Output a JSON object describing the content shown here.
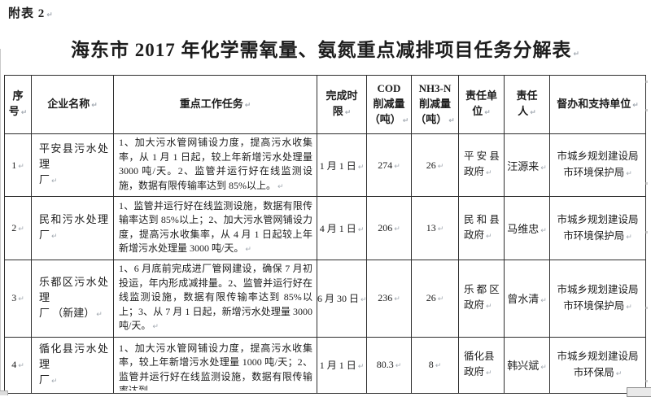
{
  "page": {
    "annex_label": "附表 2",
    "title": "海东市 2017 年化学需氧量、氨氮重点减排项目任务分解表"
  },
  "colors": {
    "background": "#ffffff",
    "text": "#1c1c1c",
    "table_border": "#2e2e2e",
    "formatting_mark": "#a3aab2"
  },
  "ui": {
    "formatting_mark": "↵"
  },
  "table": {
    "columns": [
      {
        "label": "序\n号"
      },
      {
        "label": "企业名称"
      },
      {
        "label": "重点工作任务"
      },
      {
        "label": "完成时\n限"
      },
      {
        "label": "COD\n削减量\n（吨）"
      },
      {
        "label": "NH3-N\n削减量\n（吨）"
      },
      {
        "label": "责任单\n位"
      },
      {
        "label": "责任\n人"
      },
      {
        "label": "督办和支持单位"
      }
    ],
    "rows": [
      {
        "no": "1",
        "enterprise": "平安县污水处理\n厂",
        "tasks": "1、加大污水管网铺设力度，提高污水收集率，从 1 月 1 日起，较上年新增污水处理量 3000 吨/天。2、监管并运行好在线监测设施，数据有限传输率达到 85%以上。",
        "deadline": "1 月 1 日",
        "cod_reduction": "274",
        "nh3n_reduction": "26",
        "responsible_unit": "平 安 县\n政府",
        "responsible_person": "汪源来",
        "supervising_units": "市城乡规划建设局\n市环境保护局"
      },
      {
        "no": "2",
        "enterprise": "民和污水处理厂",
        "tasks": "1、监管并运行好在线监测设施，数据有限传输率达到 85%以上；2、加大污水管网铺设力度，提高污水收集率，从 4 月 1 日起较上年新增污水处理量 3000 吨/天。",
        "deadline": "4 月 1 日",
        "cod_reduction": "206",
        "nh3n_reduction": "13",
        "responsible_unit": "民 和 县\n政府",
        "responsible_person": "马维忠",
        "supervising_units": "市城乡规划建设局\n市环境保护局"
      },
      {
        "no": "3",
        "enterprise": "乐都区污水处理\n厂 （新建）",
        "tasks": "1、6 月底前完成进厂管网建设，确保 7 月初投运，年内形成减排量。2、监管并运行好在线监测设施，数据有限传输率达到 85%以上；3、从 7 月 1 日起，新增污水处理量 3000 吨/天。",
        "deadline": "6 月 30 日",
        "cod_reduction": "236",
        "nh3n_reduction": "26",
        "responsible_unit": "乐 都 区\n政府",
        "responsible_person": "曾水清",
        "supervising_units": "市城乡规划建设局\n市环境保护局"
      },
      {
        "no": "4",
        "enterprise": "循化县污水处理\n厂",
        "tasks": "1、加大污水管网铺设力度，提高污水收集率，较上年新增污水处理量 1000 吨/天；2、监管并运行好在线监测设施，数据有限传输率达到",
        "deadline": "1 月 1 日",
        "cod_reduction": "80.3",
        "nh3n_reduction": "8",
        "responsible_unit": "循化县\n政府",
        "responsible_person": "韩兴斌",
        "supervising_units": "市城乡规划建设局\n市环保局"
      }
    ]
  }
}
